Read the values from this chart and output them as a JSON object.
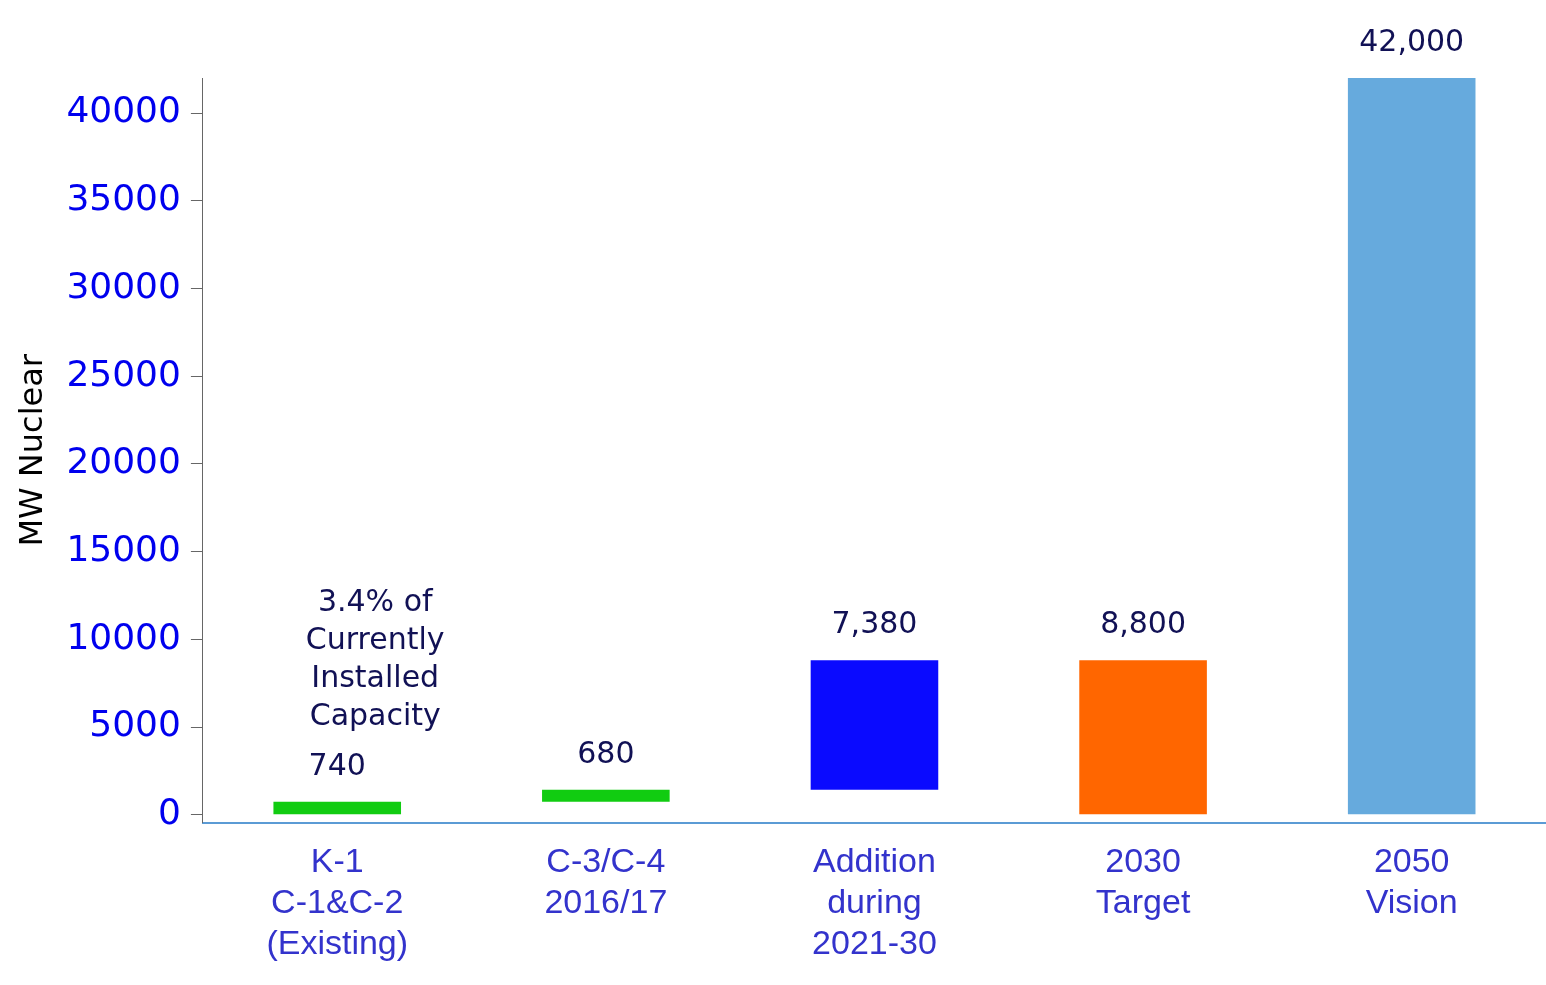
{
  "chart_data": {
    "type": "bar",
    "ylabel": "MW Nuclear",
    "categories": [
      "K-1\nC-1&C-2\n(Existing)",
      "C-3/C-4\n2016/17",
      "Addition\nduring\n2021-30",
      "2030\nTarget",
      "2050\nVision"
    ],
    "values": [
      740,
      680,
      7380,
      8800,
      42000
    ],
    "base": [
      0,
      740,
      1420,
      0,
      0
    ],
    "colors": [
      "#11cc11",
      "#11cc11",
      "#0a0aff",
      "#ff6600",
      "#66aadd"
    ],
    "value_labels": [
      "740",
      "680",
      "7,380",
      "8,800",
      "42,000"
    ],
    "annotations": [
      "3.4% of\nCurrently\nInstalled\nCapacity"
    ],
    "ylim": [
      -450,
      42000
    ],
    "yticks": [
      0,
      5000,
      10000,
      15000,
      20000,
      25000,
      30000,
      35000,
      40000
    ],
    "grid": false,
    "legend": false
  }
}
